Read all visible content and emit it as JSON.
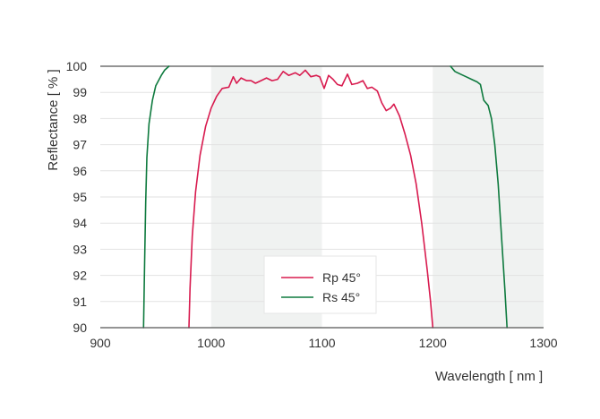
{
  "chart_data": {
    "type": "line",
    "xlabel": "Wavelength [ nm ]",
    "ylabel": "Reflectance [ % ]",
    "xlim": [
      900,
      1300
    ],
    "ylim": [
      90,
      100
    ],
    "x_ticks": [
      900,
      1000,
      1100,
      1200,
      1300
    ],
    "y_ticks": [
      90,
      91,
      92,
      93,
      94,
      95,
      96,
      97,
      98,
      99,
      100
    ],
    "grid": "horizontal",
    "shaded_bands": [
      [
        1000,
        1100
      ],
      [
        1200,
        1300
      ]
    ],
    "legend": {
      "placement": "bottom-center",
      "entries": [
        "Rp 45°",
        "Rs 45°"
      ]
    },
    "series": [
      {
        "name": "Rp 45°",
        "color": "#d81b4f",
        "points": [
          [
            980,
            90
          ],
          [
            981,
            91.5
          ],
          [
            983,
            93.5
          ],
          [
            986,
            95.2
          ],
          [
            990,
            96.6
          ],
          [
            995,
            97.7
          ],
          [
            1000,
            98.4
          ],
          [
            1005,
            98.85
          ],
          [
            1010,
            99.15
          ],
          [
            1016,
            99.2
          ],
          [
            1020,
            99.6
          ],
          [
            1023,
            99.35
          ],
          [
            1027,
            99.55
          ],
          [
            1032,
            99.45
          ],
          [
            1036,
            99.45
          ],
          [
            1040,
            99.35
          ],
          [
            1045,
            99.45
          ],
          [
            1050,
            99.55
          ],
          [
            1055,
            99.45
          ],
          [
            1060,
            99.5
          ],
          [
            1065,
            99.8
          ],
          [
            1070,
            99.65
          ],
          [
            1076,
            99.75
          ],
          [
            1080,
            99.65
          ],
          [
            1085,
            99.85
          ],
          [
            1090,
            99.6
          ],
          [
            1095,
            99.65
          ],
          [
            1098,
            99.6
          ],
          [
            1102,
            99.15
          ],
          [
            1106,
            99.65
          ],
          [
            1110,
            99.5
          ],
          [
            1114,
            99.3
          ],
          [
            1118,
            99.25
          ],
          [
            1123,
            99.7
          ],
          [
            1127,
            99.3
          ],
          [
            1132,
            99.35
          ],
          [
            1137,
            99.45
          ],
          [
            1141,
            99.15
          ],
          [
            1145,
            99.2
          ],
          [
            1150,
            99.05
          ],
          [
            1154,
            98.6
          ],
          [
            1158,
            98.3
          ],
          [
            1162,
            98.4
          ],
          [
            1165,
            98.55
          ],
          [
            1170,
            98.1
          ],
          [
            1175,
            97.4
          ],
          [
            1180,
            96.6
          ],
          [
            1185,
            95.5
          ],
          [
            1190,
            94.0
          ],
          [
            1195,
            92.2
          ],
          [
            1198,
            91.0
          ],
          [
            1200,
            90
          ]
        ]
      },
      {
        "name": "Rs 45°",
        "color": "#0e7a3e",
        "points": [
          [
            939,
            90
          ],
          [
            940,
            92.5
          ],
          [
            941,
            94.8
          ],
          [
            942,
            96.5
          ],
          [
            944,
            97.8
          ],
          [
            947,
            98.7
          ],
          [
            950,
            99.25
          ],
          [
            955,
            99.65
          ],
          [
            958,
            99.85
          ],
          [
            962,
            100
          ],
          [
            1216,
            100
          ],
          [
            1220,
            99.8
          ],
          [
            1225,
            99.7
          ],
          [
            1230,
            99.6
          ],
          [
            1235,
            99.5
          ],
          [
            1240,
            99.4
          ],
          [
            1243,
            99.3
          ],
          [
            1246,
            98.7
          ],
          [
            1250,
            98.5
          ],
          [
            1253,
            98.0
          ],
          [
            1256,
            97.0
          ],
          [
            1259,
            95.5
          ],
          [
            1262,
            93.5
          ],
          [
            1265,
            91.5
          ],
          [
            1267,
            90
          ]
        ]
      }
    ]
  }
}
